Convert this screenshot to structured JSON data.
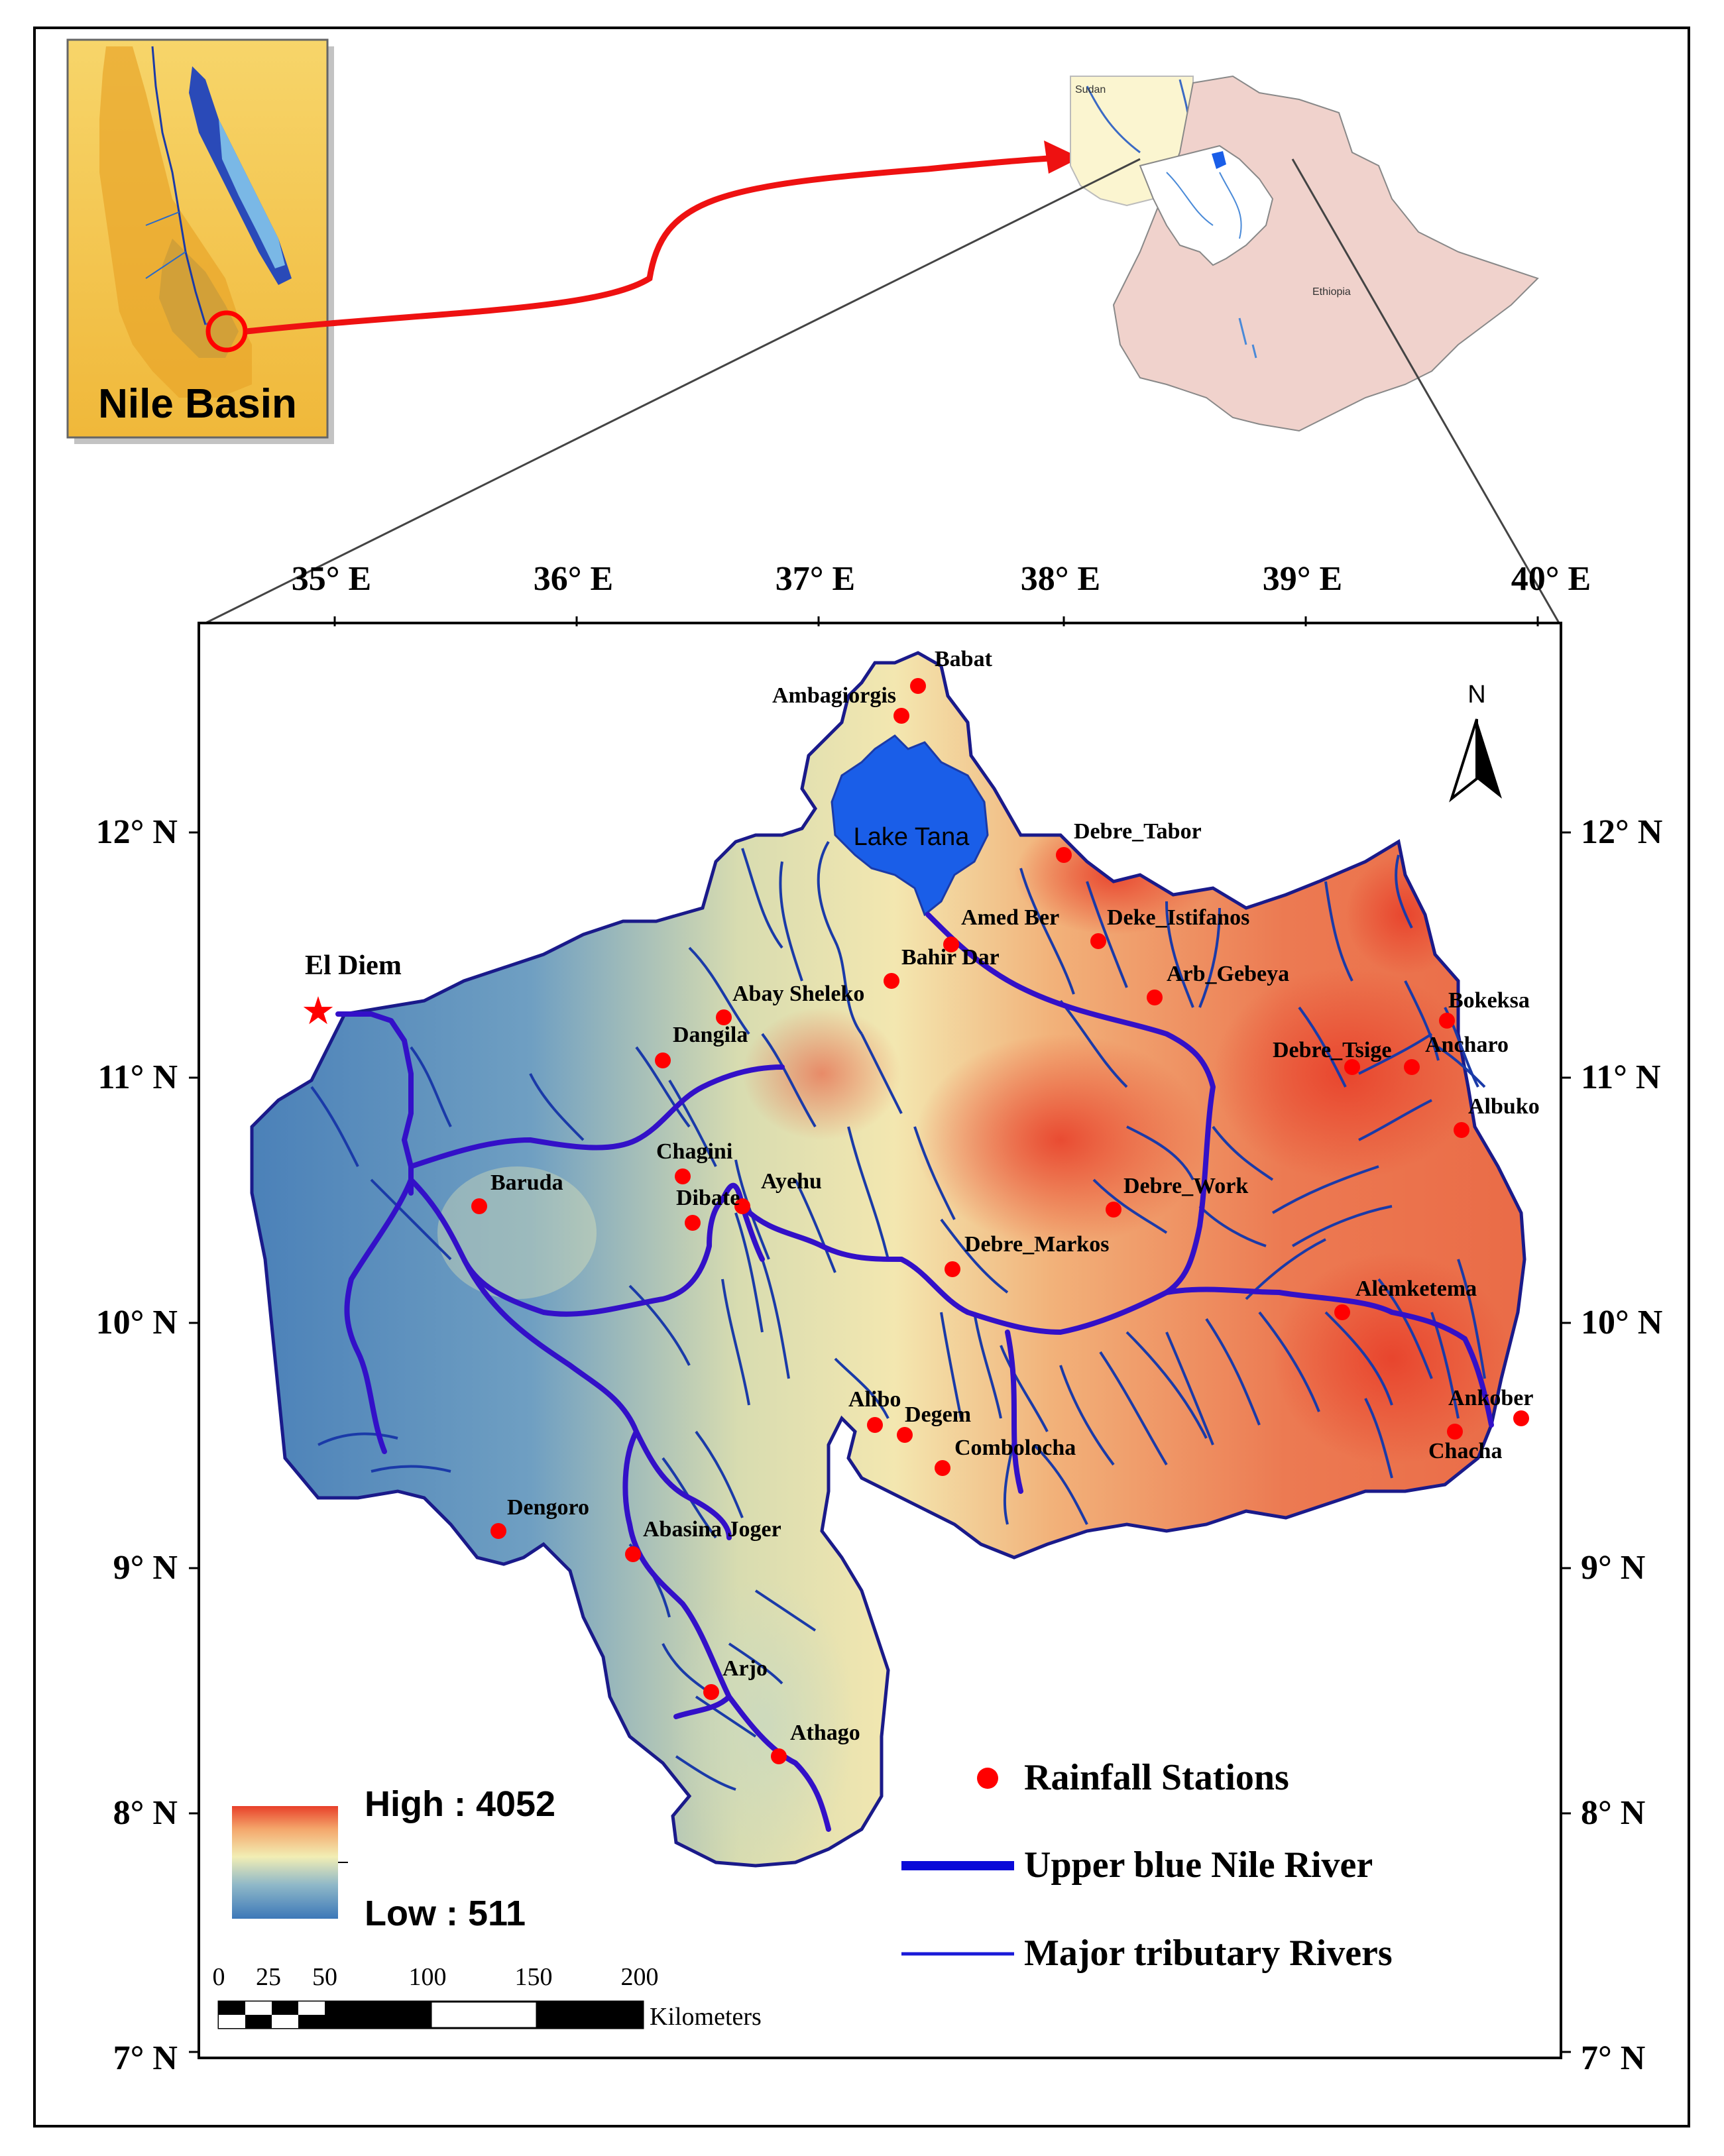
{
  "inset": {
    "title": "Nile Basin",
    "country_labels": {
      "sudan": "Sudan",
      "ethiopia": "Ethiopia"
    }
  },
  "axes": {
    "longitudes": [
      "35° E",
      "36° E",
      "37° E",
      "38° E",
      "39° E",
      "40° E"
    ],
    "latitudes": [
      "12° N",
      "11° N",
      "10° N",
      "9° N",
      "8° N",
      "7° N"
    ]
  },
  "outlet": {
    "label": "El Diem"
  },
  "lake": {
    "label": "Lake Tana"
  },
  "north_arrow": {
    "label": "N"
  },
  "stations": [
    {
      "name": "Babat"
    },
    {
      "name": "Ambagiorgis"
    },
    {
      "name": "Debre_Tabor"
    },
    {
      "name": "Amed Ber"
    },
    {
      "name": "Deke_Istifanos"
    },
    {
      "name": "Bahir Dar"
    },
    {
      "name": "Arb_Gebeya"
    },
    {
      "name": "Abay Sheleko"
    },
    {
      "name": "Dangila"
    },
    {
      "name": "Bokeksa"
    },
    {
      "name": "Debre_Tsige"
    },
    {
      "name": "Ancharo"
    },
    {
      "name": "Albuko"
    },
    {
      "name": "Chagini"
    },
    {
      "name": "Baruda"
    },
    {
      "name": "Ayehu"
    },
    {
      "name": "Dibate"
    },
    {
      "name": "Debre_Work"
    },
    {
      "name": "Debre_Markos"
    },
    {
      "name": "Alemketema"
    },
    {
      "name": "Ankober"
    },
    {
      "name": "Alibo"
    },
    {
      "name": "Degem"
    },
    {
      "name": "Chacha"
    },
    {
      "name": "Combolocha"
    },
    {
      "name": "Dengoro"
    },
    {
      "name": "Abasina Joger"
    },
    {
      "name": "Arjo"
    },
    {
      "name": "Athago"
    }
  ],
  "elevation_legend": {
    "high": "High : 4052",
    "low": "Low : 511"
  },
  "legend": {
    "stations": "Rainfall Stations",
    "main_river": "Upper blue Nile River",
    "tributaries": "Major tributary Rivers"
  },
  "scale_bar": {
    "ticks": [
      "0",
      "25",
      "50",
      "100",
      "150",
      "200"
    ],
    "unit": "Kilometers"
  },
  "colors": {
    "elev_high": "#e8402a",
    "elev_mid": "#f2eeb4",
    "elev_low": "#3c78b8",
    "station": "#ff0000",
    "main_river": "#3310c8",
    "tributary": "#1a3aa8",
    "lake": "#1a5ee8",
    "ethiopia": "#f0d2cc",
    "inset_bg": "#f5c94a"
  }
}
